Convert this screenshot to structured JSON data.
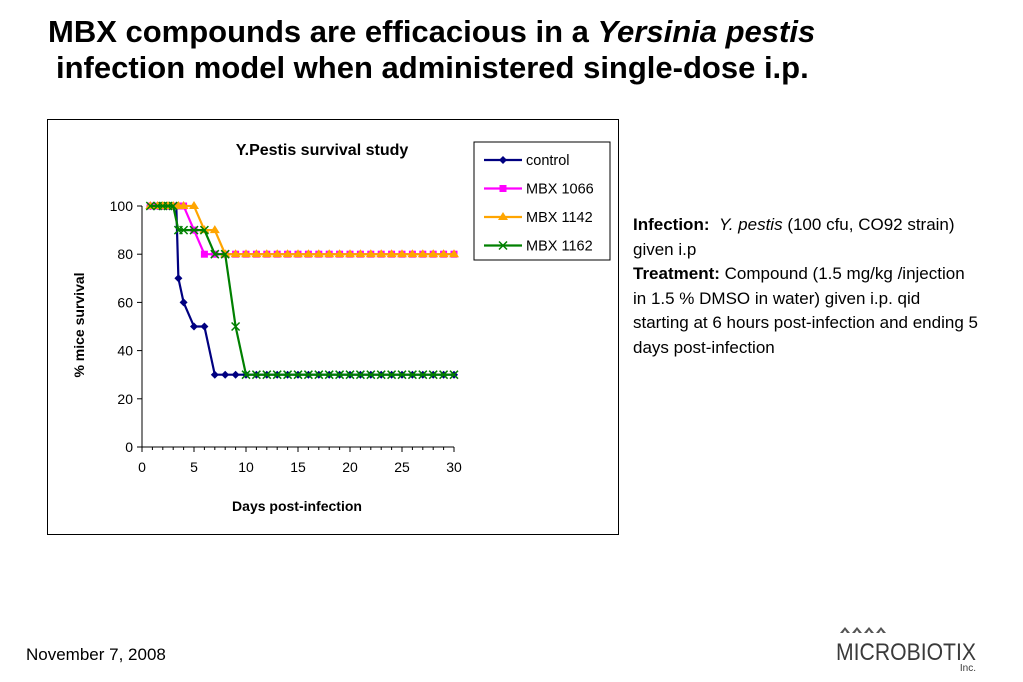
{
  "slide": {
    "title_part1": "MBX compounds are efficacious in a ",
    "title_italic": "Yersinia pestis",
    "title_line2": "infection model when administered single-dose i.p.",
    "date": "November 7, 2008",
    "logo_text": "MICROBIOTIX",
    "logo_sub": "Inc."
  },
  "info": {
    "infection_label": "Infection:",
    "infection_italic": "Y. pestis",
    "infection_text": " (100 cfu, CO92 strain) given i.p",
    "treatment_label": "Treatment:",
    "treatment_text": " Compound (1.5 mg/kg /injection in 1.5 % DMSO in water) given i.p. qid starting at 6 hours post-infection and ending 5 days post-infection"
  },
  "chart_data": {
    "type": "line",
    "title": "Y.Pestis survival study",
    "xlabel": "Days post-infection",
    "ylabel": "% mice survival",
    "xlim": [
      0,
      30
    ],
    "ylim": [
      0,
      100
    ],
    "xticks": [
      0,
      5,
      10,
      15,
      20,
      25,
      30
    ],
    "yticks": [
      0,
      20,
      40,
      60,
      80,
      100
    ],
    "grid": false,
    "legend": "right",
    "series": [
      {
        "name": "control",
        "color": "#000080",
        "marker": "diamond",
        "points": [
          [
            0.8,
            100
          ],
          [
            1.5,
            100
          ],
          [
            2,
            100
          ],
          [
            2.5,
            100
          ],
          [
            3,
            100
          ],
          [
            3.3,
            100
          ],
          [
            3.5,
            70
          ],
          [
            4,
            60
          ],
          [
            5,
            50
          ],
          [
            6,
            50
          ],
          [
            7,
            30
          ],
          [
            8,
            30
          ],
          [
            9,
            30
          ],
          [
            10,
            30
          ],
          [
            11,
            30
          ],
          [
            12,
            30
          ],
          [
            13,
            30
          ],
          [
            14,
            30
          ],
          [
            15,
            30
          ],
          [
            16,
            30
          ],
          [
            17,
            30
          ],
          [
            18,
            30
          ],
          [
            19,
            30
          ],
          [
            20,
            30
          ],
          [
            21,
            30
          ],
          [
            22,
            30
          ],
          [
            23,
            30
          ],
          [
            24,
            30
          ],
          [
            25,
            30
          ],
          [
            26,
            30
          ],
          [
            27,
            30
          ],
          [
            28,
            30
          ],
          [
            29,
            30
          ],
          [
            30,
            30
          ]
        ]
      },
      {
        "name": "MBX 1066",
        "color": "#ff00ff",
        "marker": "square",
        "points": [
          [
            0.8,
            100
          ],
          [
            1.5,
            100
          ],
          [
            2,
            100
          ],
          [
            2.5,
            100
          ],
          [
            3,
            100
          ],
          [
            3.5,
            100
          ],
          [
            4,
            100
          ],
          [
            5,
            90
          ],
          [
            6,
            80
          ],
          [
            7,
            80
          ],
          [
            8,
            80
          ],
          [
            9,
            80
          ],
          [
            10,
            80
          ],
          [
            11,
            80
          ],
          [
            12,
            80
          ],
          [
            13,
            80
          ],
          [
            14,
            80
          ],
          [
            15,
            80
          ],
          [
            16,
            80
          ],
          [
            17,
            80
          ],
          [
            18,
            80
          ],
          [
            19,
            80
          ],
          [
            20,
            80
          ],
          [
            21,
            80
          ],
          [
            22,
            80
          ],
          [
            23,
            80
          ],
          [
            24,
            80
          ],
          [
            25,
            80
          ],
          [
            26,
            80
          ],
          [
            27,
            80
          ],
          [
            28,
            80
          ],
          [
            29,
            80
          ],
          [
            30,
            80
          ]
        ]
      },
      {
        "name": "MBX 1142",
        "color": "#ffa500",
        "marker": "triangle",
        "points": [
          [
            0.8,
            100
          ],
          [
            1.5,
            100
          ],
          [
            2,
            100
          ],
          [
            2.5,
            100
          ],
          [
            3,
            100
          ],
          [
            3.5,
            100
          ],
          [
            4,
            100
          ],
          [
            5,
            100
          ],
          [
            6,
            90
          ],
          [
            7,
            90
          ],
          [
            8,
            80
          ],
          [
            9,
            80
          ],
          [
            10,
            80
          ],
          [
            11,
            80
          ],
          [
            12,
            80
          ],
          [
            13,
            80
          ],
          [
            14,
            80
          ],
          [
            15,
            80
          ],
          [
            16,
            80
          ],
          [
            17,
            80
          ],
          [
            18,
            80
          ],
          [
            19,
            80
          ],
          [
            20,
            80
          ],
          [
            21,
            80
          ],
          [
            22,
            80
          ],
          [
            23,
            80
          ],
          [
            24,
            80
          ],
          [
            25,
            80
          ],
          [
            26,
            80
          ],
          [
            27,
            80
          ],
          [
            28,
            80
          ],
          [
            29,
            80
          ],
          [
            30,
            80
          ]
        ]
      },
      {
        "name": "MBX 1162",
        "color": "#008000",
        "marker": "x",
        "points": [
          [
            0.8,
            100
          ],
          [
            1.5,
            100
          ],
          [
            2,
            100
          ],
          [
            2.5,
            100
          ],
          [
            3,
            100
          ],
          [
            3.5,
            90
          ],
          [
            4,
            90
          ],
          [
            5,
            90
          ],
          [
            6,
            90
          ],
          [
            7,
            80
          ],
          [
            8,
            80
          ],
          [
            9,
            50
          ],
          [
            10,
            30
          ],
          [
            11,
            30
          ],
          [
            12,
            30
          ],
          [
            13,
            30
          ],
          [
            14,
            30
          ],
          [
            15,
            30
          ],
          [
            16,
            30
          ],
          [
            17,
            30
          ],
          [
            18,
            30
          ],
          [
            19,
            30
          ],
          [
            20,
            30
          ],
          [
            21,
            30
          ],
          [
            22,
            30
          ],
          [
            23,
            30
          ],
          [
            24,
            30
          ],
          [
            25,
            30
          ],
          [
            26,
            30
          ],
          [
            27,
            30
          ],
          [
            28,
            30
          ],
          [
            29,
            30
          ],
          [
            30,
            30
          ]
        ]
      }
    ]
  }
}
